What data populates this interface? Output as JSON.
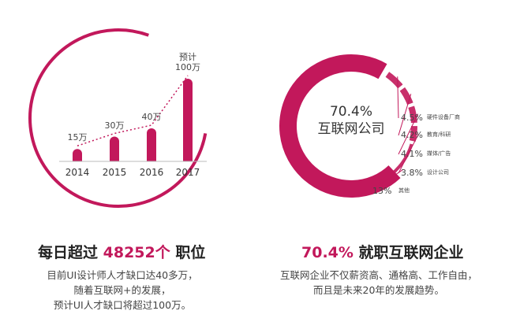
{
  "chart_data": [
    {
      "type": "bar",
      "categories": [
        "2014",
        "2015",
        "2016",
        "2017"
      ],
      "values": [
        15,
        30,
        40,
        100
      ],
      "value_labels": [
        "15万",
        "30万",
        "40万",
        "预计\n100万"
      ],
      "color": "#c2185b"
    },
    {
      "type": "radial",
      "categories": [
        "互联网公司",
        "硬件设备厂商",
        "教育/科研",
        "媒体/广告",
        "设计公司",
        "其他"
      ],
      "values": [
        70.4,
        4.5,
        4.2,
        4.1,
        3.8,
        13
      ],
      "value_labels": [
        "70.4%",
        "4.5%",
        "4.2%",
        "4.1%",
        "3.8%",
        "13%"
      ],
      "color": "#c2185b"
    }
  ],
  "sections": [
    {
      "heading": [
        "每日超过",
        "48252个",
        "职位"
      ],
      "body": [
        "目前UI设计师人才缺口达40多万，",
        "随着互联网+的发展，",
        "预计UI人才缺口将超过100万。"
      ]
    },
    {
      "heading": [
        "70.4%",
        "就职互联网企业"
      ],
      "body": [
        "互联网企业不仅薪资高、通格高、工作自由，",
        "而且是未来20年的发展趋势。"
      ]
    }
  ]
}
